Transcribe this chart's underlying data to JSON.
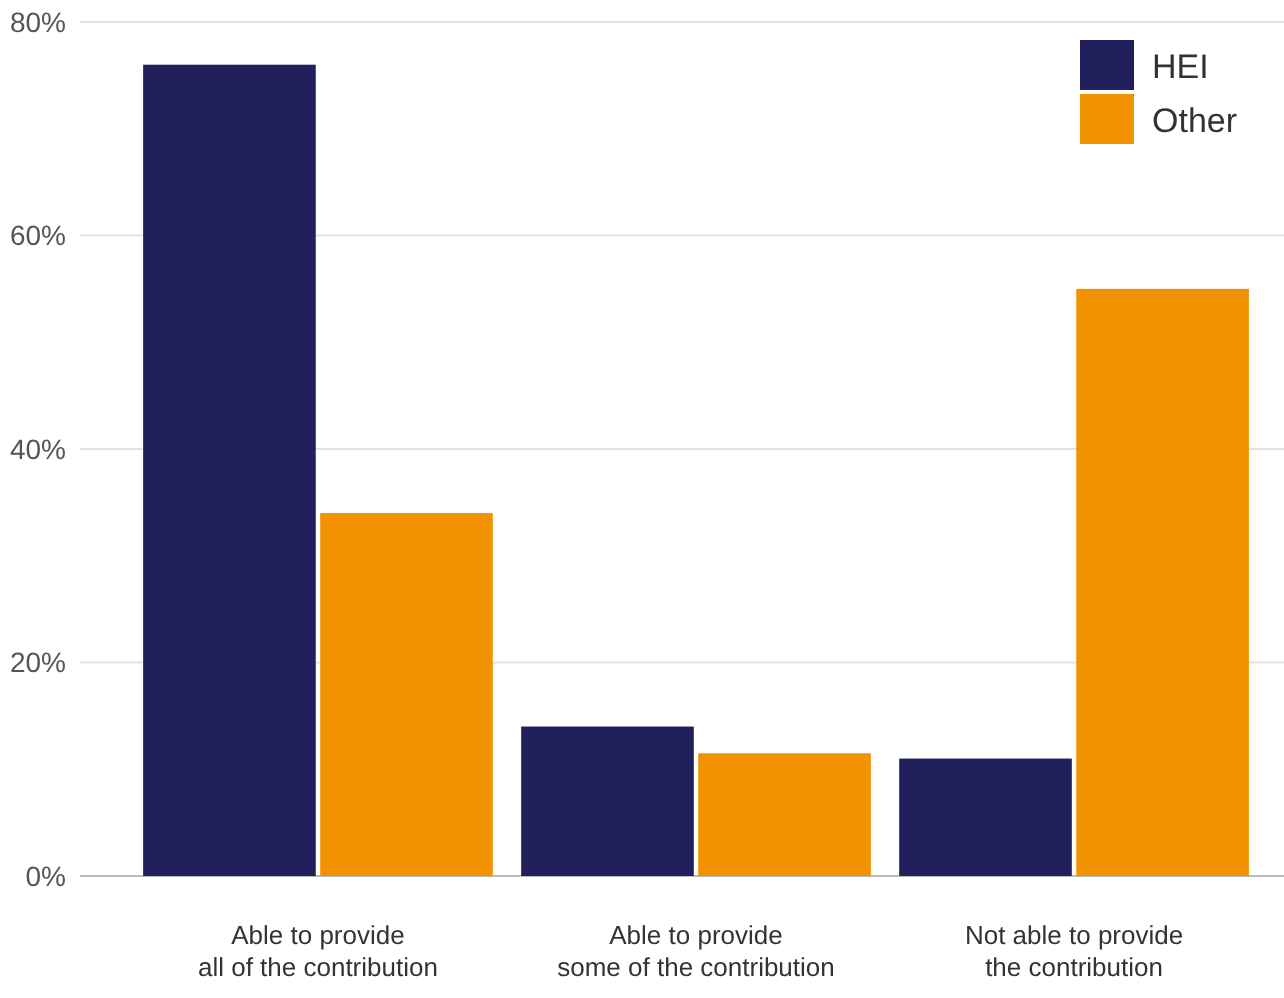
{
  "chart_data": {
    "type": "bar",
    "categories": [
      "Able to provide\nall of the contribution",
      "Able to provide\nsome of the contribution",
      "Not able to provide\nthe contribution"
    ],
    "series": [
      {
        "name": "HEI",
        "color": "#22205c",
        "values": [
          76,
          14,
          11
        ]
      },
      {
        "name": "Other",
        "color": "#f39200",
        "values": [
          34,
          11.5,
          55
        ]
      }
    ],
    "ylim": [
      0,
      80
    ],
    "yticks": [
      {
        "value": 0,
        "label": "0%"
      },
      {
        "value": 20,
        "label": "20%"
      },
      {
        "value": 40,
        "label": "40%"
      },
      {
        "value": 60,
        "label": "60%"
      },
      {
        "value": 80,
        "label": "80%"
      }
    ],
    "grid": "y",
    "legend": "top right"
  }
}
